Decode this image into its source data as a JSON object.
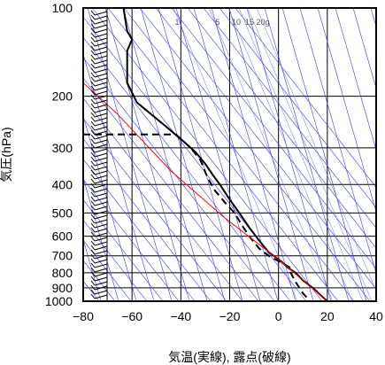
{
  "chart_data": {
    "type": "line",
    "title": "",
    "xlabel": "気温(実線), 露点(破線)",
    "ylabel": "気圧(hPa)",
    "xlim": [
      -80,
      40
    ],
    "ylim": [
      1000,
      100
    ],
    "y_scale": "log",
    "x_ticks": [
      -80,
      -60,
      -40,
      -20,
      0,
      20,
      40
    ],
    "y_ticks": [
      100,
      200,
      300,
      400,
      500,
      600,
      700,
      800,
      900,
      1000
    ],
    "grid": true,
    "mixing_ratio_labels": [
      "1",
      "5",
      "10",
      "15",
      "20g"
    ],
    "series": [
      {
        "style": "solid",
        "color": "#000000",
        "points": [
          [
            -63.5,
            100
          ],
          [
            -62,
            120
          ],
          [
            -60,
            128
          ],
          [
            -62,
            140
          ],
          [
            -62,
            180
          ],
          [
            -58,
            210
          ],
          [
            -47,
            250
          ],
          [
            -40,
            280
          ],
          [
            -34,
            310
          ],
          [
            -30,
            340
          ],
          [
            -27,
            370
          ],
          [
            -24,
            400
          ],
          [
            -20,
            450
          ],
          [
            -16,
            500
          ],
          [
            -12,
            560
          ],
          [
            -8,
            620
          ],
          [
            -4,
            680
          ],
          [
            1,
            730
          ],
          [
            4,
            770
          ],
          [
            7,
            800
          ],
          [
            10,
            850
          ],
          [
            14,
            900
          ],
          [
            17,
            950
          ],
          [
            20,
            1000
          ]
        ]
      },
      {
        "style": "dashed",
        "color": "#000000",
        "points": [
          [
            -80,
            270
          ],
          [
            -42,
            270
          ],
          [
            -36,
            300
          ],
          [
            -32,
            330
          ],
          [
            -29,
            380
          ],
          [
            -26,
            420
          ],
          [
            -22,
            460
          ],
          [
            -18,
            500
          ],
          [
            -15,
            550
          ],
          [
            -12,
            600
          ],
          [
            -8,
            660
          ],
          [
            -4,
            700
          ],
          [
            0,
            730
          ],
          [
            5,
            770
          ],
          [
            5,
            800
          ],
          [
            7,
            860
          ],
          [
            10,
            940
          ],
          [
            13,
            1000
          ]
        ]
      },
      {
        "style": "solid",
        "color": "#ff0000",
        "points": [
          [
            -80,
            180
          ],
          [
            -66,
            230
          ],
          [
            -44,
            360
          ],
          [
            -22,
            520
          ],
          [
            0,
            720
          ],
          [
            20,
            1000
          ]
        ]
      }
    ],
    "wind_barbs": "left column, all levels 100–1000 hPa"
  }
}
